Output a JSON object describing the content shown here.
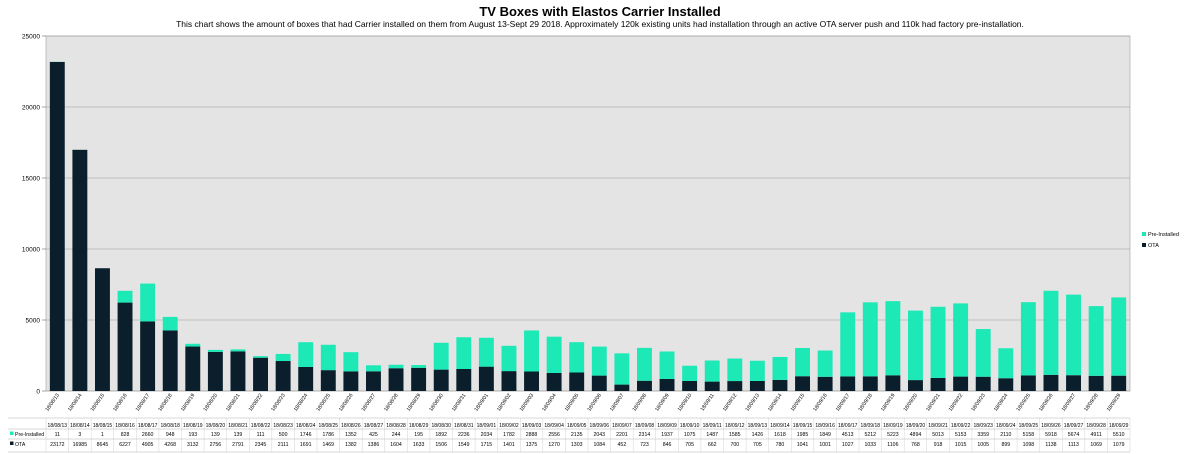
{
  "chart_data": {
    "type": "bar",
    "stacked": true,
    "title": "TV Boxes with Elastos Carrier Installed",
    "subtitle": "This chart shows the amount of boxes that had Carrier installed on them from August 13-Sept 29 2018. Approximately 120k existing units had installation through an active OTA server push and 110k had factory pre-installation.",
    "xlabel": "",
    "ylabel": "",
    "ylim": [
      0,
      25000
    ],
    "yticks": [
      0,
      5000,
      10000,
      15000,
      20000,
      25000
    ],
    "grid": true,
    "legend_position": "right",
    "categories": [
      "18/08/13",
      "18/08/14",
      "18/08/15",
      "18/08/16",
      "18/08/17",
      "18/08/18",
      "18/08/19",
      "18/08/20",
      "18/08/21",
      "18/08/22",
      "18/08/23",
      "18/08/24",
      "18/08/25",
      "18/08/26",
      "18/08/27",
      "18/08/28",
      "18/08/29",
      "18/08/30",
      "18/08/31",
      "18/09/01",
      "18/09/02",
      "18/09/03",
      "18/09/04",
      "18/09/05",
      "18/09/06",
      "18/09/07",
      "18/09/08",
      "18/09/09",
      "18/09/10",
      "18/09/11",
      "18/09/12",
      "18/09/13",
      "18/09/14",
      "18/09/15",
      "18/09/16",
      "18/09/17",
      "18/09/18",
      "18/09/19",
      "18/09/20",
      "18/09/21",
      "18/09/22",
      "18/09/23",
      "18/09/24",
      "18/09/25",
      "18/09/26",
      "18/09/27",
      "18/09/28",
      "18/09/29"
    ],
    "series": [
      {
        "name": "OTA",
        "color": "#0b1e2b",
        "values": [
          23172,
          16985,
          8645,
          6227,
          4905,
          4268,
          3132,
          2756,
          2791,
          2345,
          2111,
          1691,
          1469,
          1382,
          1386,
          1604,
          1633,
          1506,
          1549,
          1715,
          1401,
          1375,
          1270,
          1303,
          1084,
          452,
          723,
          846,
          705,
          662,
          700,
          705,
          780,
          1041,
          1001,
          1027,
          1033,
          1106,
          768,
          918,
          1015,
          1005,
          899,
          1098,
          1138,
          1113,
          1069,
          1079
        ]
      },
      {
        "name": "Pre-Installed",
        "color": "#1de9b6",
        "values": [
          11,
          3,
          1,
          828,
          2660,
          948,
          193,
          139,
          139,
          111,
          500,
          1746,
          1786,
          1352,
          425,
          244,
          195,
          1892,
          2236,
          2034,
          1782,
          2888,
          2556,
          2135,
          2043,
          2201,
          2314,
          1937,
          1075,
          1487,
          1585,
          1426,
          1618,
          1985,
          1849,
          4513,
          5212,
          5223,
          4894,
          5013,
          5153,
          3359,
          2110,
          5158,
          5918,
          5674,
          4911,
          5510
        ]
      }
    ]
  }
}
